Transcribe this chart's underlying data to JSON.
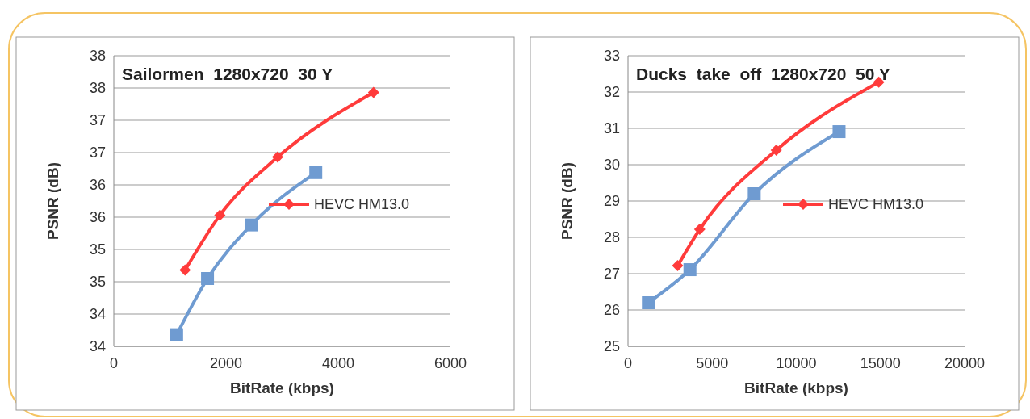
{
  "chart_data": [
    {
      "type": "line",
      "title": "Sailormen_1280x720_30 Y",
      "xlabel": "BitRate (kbps)",
      "ylabel": "PSNR (dB)",
      "xlim": [
        0,
        6000
      ],
      "xticks": [
        0,
        2000,
        4000,
        6000
      ],
      "ylim": [
        33.6,
        38.1
      ],
      "yticks": [
        {
          "value": 33.6,
          "label": "34"
        },
        {
          "value": 34.1,
          "label": "34"
        },
        {
          "value": 34.6,
          "label": "35"
        },
        {
          "value": 35.1,
          "label": "35"
        },
        {
          "value": 35.6,
          "label": "36"
        },
        {
          "value": 36.1,
          "label": "36"
        },
        {
          "value": 36.6,
          "label": "37"
        },
        {
          "value": 37.1,
          "label": "37"
        },
        {
          "value": 37.6,
          "label": "38"
        },
        {
          "value": 38.1,
          "label": "38"
        }
      ],
      "grid": "y",
      "legend": "right",
      "series": [
        {
          "name": "HEVC HM13.0",
          "color": "#ff3b3b",
          "marker": "diamond",
          "x": [
            1270,
            1890,
            2920,
            4630
          ],
          "values": [
            34.78,
            35.63,
            36.53,
            37.53
          ]
        },
        {
          "color": "#6f9bd1",
          "marker": "square",
          "x": [
            1120,
            1670,
            2450,
            3600
          ],
          "values": [
            33.78,
            34.65,
            35.48,
            36.29
          ]
        }
      ]
    },
    {
      "type": "line",
      "title": "Ducks_take_off_1280x720_50 Y",
      "xlabel": "BitRate (kbps)",
      "ylabel": "PSNR (dB)",
      "xlim": [
        0,
        20000
      ],
      "xticks": [
        0,
        5000,
        10000,
        15000,
        20000
      ],
      "ylim": [
        25,
        33
      ],
      "yticks": [
        25,
        26,
        27,
        28,
        29,
        30,
        31,
        32,
        33
      ],
      "grid": "y",
      "legend": "right",
      "series": [
        {
          "name": "HEVC HM13.0",
          "color": "#ff3b3b",
          "marker": "diamond",
          "x": [
            2950,
            4260,
            8810,
            14900
          ],
          "values": [
            27.22,
            28.22,
            30.4,
            32.27
          ]
        },
        {
          "color": "#6f9bd1",
          "marker": "square",
          "x": [
            1210,
            3680,
            7500,
            12540
          ],
          "values": [
            26.2,
            27.11,
            29.2,
            30.91
          ]
        }
      ]
    }
  ]
}
